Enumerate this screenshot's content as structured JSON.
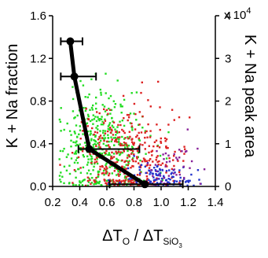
{
  "chart_data": {
    "type": "scatter",
    "xlabel": {
      "main": "ΔT",
      "sub": "O",
      "divider": " / ΔT",
      "sub2": "SiO",
      "sub3": "3"
    },
    "ylabel_left": "K + Na fraction",
    "ylabel_right": "K + Na peak area",
    "xlim": [
      0.2,
      1.4
    ],
    "ylim_left": [
      0.0,
      1.6
    ],
    "ylim_right": [
      0,
      40000
    ],
    "x_ticks": [
      "0.2",
      "0.4",
      "0.6",
      "0.8",
      "1.0",
      "1.2",
      "1.4"
    ],
    "y_left_ticks": [
      "0.0",
      "0.4",
      "0.8",
      "1.2",
      "1.6"
    ],
    "y_right_ticks": [
      "0",
      "1",
      "2",
      "3",
      "4"
    ],
    "right_axis_multiplier": {
      "base": "x 10",
      "exponent": "4"
    },
    "fraction_series": {
      "x": [
        0.33,
        0.36,
        0.47,
        0.88
      ],
      "y": [
        1.36,
        1.03,
        0.35,
        0.02
      ],
      "xerr_low": [
        0.26,
        0.26,
        0.39,
        0.62
      ],
      "xerr_high": [
        0.42,
        0.52,
        0.84,
        1.16
      ]
    },
    "scatter_colors": {
      "green": "#22dd22",
      "red": "#dd2222",
      "blue": "#2233cc",
      "purple": "#882299"
    },
    "scatter_clusters": [
      {
        "color": "green",
        "cx": 0.55,
        "cy": 9000,
        "sx": 0.16,
        "sy": 7000,
        "n": 430
      },
      {
        "color": "red",
        "cx": 0.75,
        "cy": 7000,
        "sx": 0.18,
        "sy": 6500,
        "n": 360
      },
      {
        "color": "blue",
        "cx": 0.98,
        "cy": 2000,
        "sx": 0.13,
        "sy": 1800,
        "n": 110
      },
      {
        "color": "purple",
        "cx": 1.05,
        "cy": 3500,
        "sx": 0.12,
        "sy": 3000,
        "n": 45
      }
    ]
  }
}
